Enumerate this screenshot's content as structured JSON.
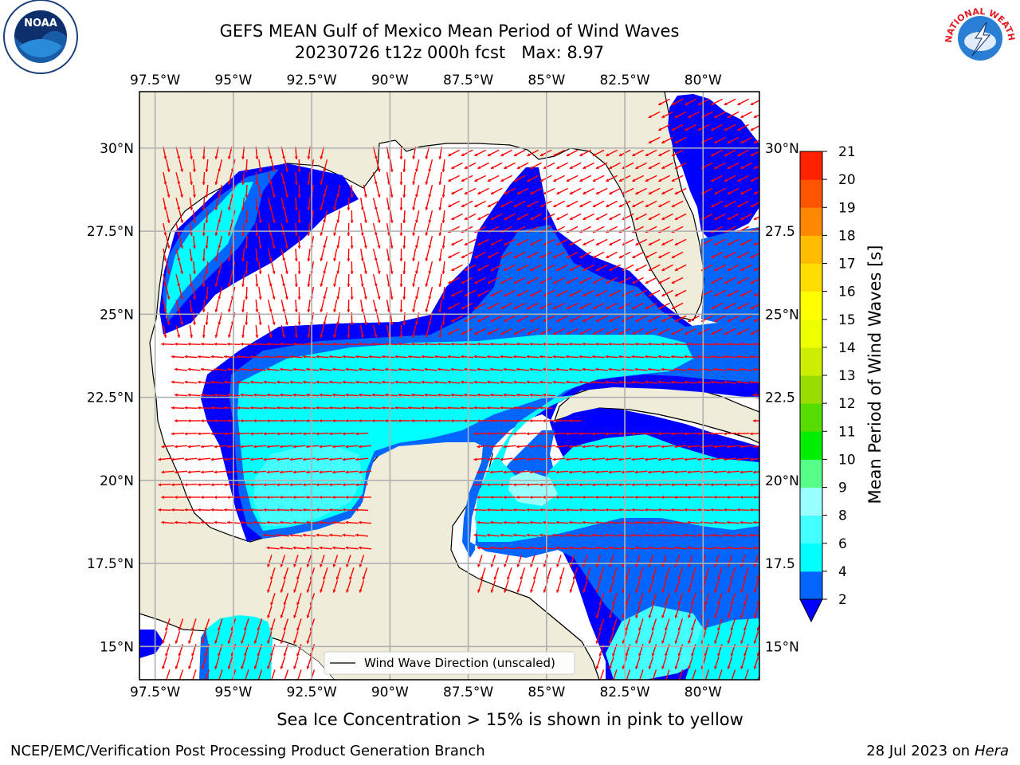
{
  "title": "GEFS MEAN Gulf of Mexico Mean Period of Wind Waves",
  "subtitle": "20230726 t12z 000h fcst   Max: 8.97",
  "note": "Sea Ice Concentration > 15% is shown in pink to yellow",
  "footer": {
    "left": "NCEP/EMC/Verification Post Processing Product Generation Branch",
    "date": "28 Jul 2023 on ",
    "host": "Hera"
  },
  "logos": {
    "noaa": "NOAA",
    "nws": "NATIONAL WEATHER SERVICE"
  },
  "legend": {
    "label": "Wind Wave Direction (unscaled)",
    "arrow_color": "#ff0000"
  },
  "colors": {
    "land": "#efedda",
    "water_low": "#ffffff",
    "grid": "#b0b0b0",
    "coast": "#000000"
  },
  "map": {
    "lon_range": [
      -98.0,
      -78.2
    ],
    "lat_range": [
      14.0,
      31.7
    ],
    "lon_ticks": [
      -97.5,
      -95,
      -92.5,
      -90,
      -87.5,
      -85,
      -82.5,
      -80
    ],
    "lon_labels": [
      "97.5°W",
      "95°W",
      "92.5°W",
      "90°W",
      "87.5°W",
      "85°W",
      "82.5°W",
      "80°W"
    ],
    "lat_ticks": [
      15,
      17.5,
      20,
      22.5,
      25,
      27.5,
      30
    ],
    "lat_labels": [
      "15°N",
      "17.5°N",
      "20°N",
      "22.5°N",
      "25°N",
      "27.5°N",
      "30°N"
    ],
    "right_lat_labels": [
      "15°N",
      "17.5",
      "20°N",
      "22.5",
      "25°N",
      "27.5",
      "30°N"
    ]
  },
  "colorbar": {
    "label": "Mean Period of Wind Waves [s]",
    "ticks": [
      "2",
      "4",
      "6",
      "8",
      "9",
      "10",
      "11",
      "12",
      "13",
      "14",
      "15",
      "16",
      "17",
      "18",
      "19",
      "20",
      "21"
    ],
    "colors": [
      "#0066ff",
      "#00ffff",
      "#44ffff",
      "#99ffff",
      "#55ff88",
      "#00ee00",
      "#55dd00",
      "#99dd00",
      "#ccee00",
      "#eeff00",
      "#ffff00",
      "#ffdd00",
      "#ffbb00",
      "#ff8800",
      "#ff5500",
      "#ff2200"
    ],
    "under_color": "#0000ff"
  }
}
